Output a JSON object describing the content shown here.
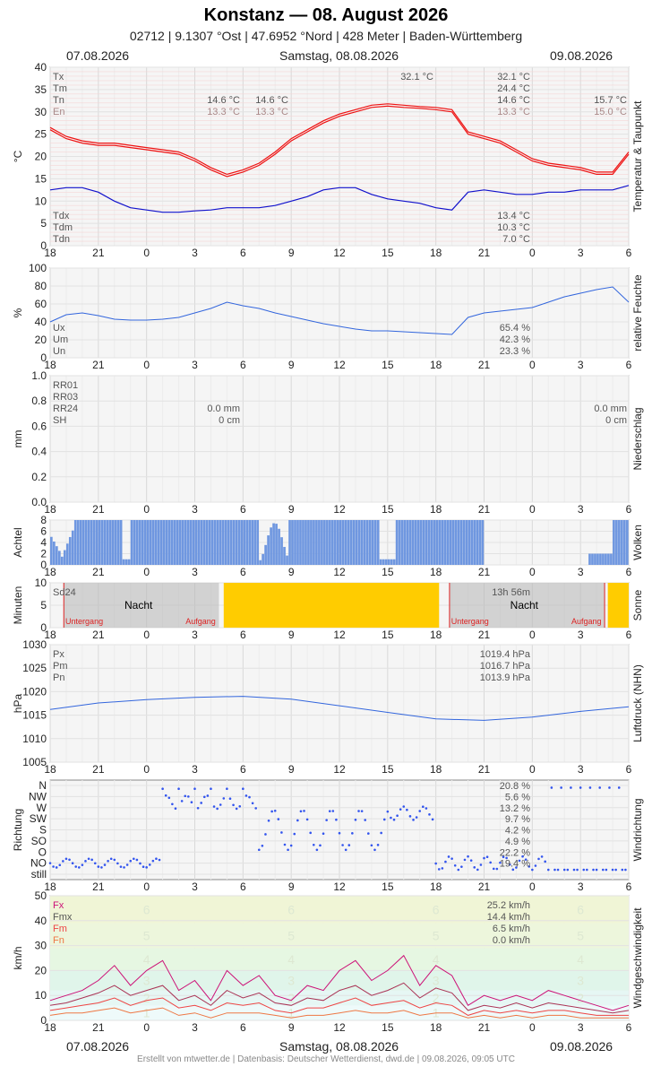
{
  "header": {
    "title": "Konstanz  —  08. August 2026",
    "subtitle": "02712  |  9.1307 °Ost  |  47.6952 °Nord  |  428 Meter  |  Baden-Württemberg",
    "date_left": "07.08.2026",
    "date_center": "Samstag, 08.08.2026",
    "date_right": "09.08.2026"
  },
  "footer": "Erstellt von mtwetter.de | Datenbasis: Deutscher Wetterdienst, dwd.de | 09.08.2026, 09:05 UTC",
  "x_ticks": [
    "18",
    "21",
    "0",
    "3",
    "6",
    "9",
    "12",
    "15",
    "18",
    "21",
    "0",
    "3",
    "6"
  ],
  "colors": {
    "temp": "#ee1111",
    "dew": "#1111cc",
    "humidity": "#3366dd",
    "cloud": "#6f97e0",
    "sun": "#ffcc00",
    "night": "#bbbbbb",
    "pressure": "#3366dd",
    "wind_dir": "#3355ee",
    "fx": "#cc1177",
    "fmx": "#aa3355",
    "fm": "#ee4444",
    "fn": "#ee7744"
  },
  "chart_data": [
    {
      "type": "line",
      "ylabel": "°C",
      "side_label": "Temperatur & Taupunkt",
      "ylim": [
        0,
        40
      ],
      "yticks": [
        "0",
        "5",
        "10",
        "15",
        "20",
        "25",
        "30",
        "35",
        "40"
      ],
      "legend": [
        "Tx",
        "Tm",
        "Tn",
        "En"
      ],
      "legend_bottom": [
        "Tdx",
        "Tdm",
        "Tdn"
      ],
      "annot_day1": {
        "tn": "14.6 °C",
        "en": "13.3 °C"
      },
      "annot_day1b": {
        "tn": "14.6 °C",
        "en": "13.3 °C"
      },
      "annot_peak": "32.1 °C",
      "annot_day2": {
        "tx": "32.1 °C",
        "tm": "24.4 °C",
        "tn": "14.6 °C",
        "en": "13.3 °C"
      },
      "annot_day3": {
        "tn": "15.7 °C",
        "en": "15.0 °C"
      },
      "annot_dew": {
        "tdx": "13.4 °C",
        "tdm": "10.3 °C",
        "tdn": "7.0 °C"
      },
      "x": [
        0,
        1,
        2,
        3,
        4,
        5,
        6,
        7,
        8,
        9,
        10,
        11,
        12,
        13,
        14,
        15,
        16,
        17,
        18,
        19,
        20,
        21,
        22,
        23,
        24,
        25,
        26,
        27,
        28,
        29,
        30,
        31,
        32,
        33,
        34,
        35,
        36
      ],
      "series": [
        {
          "name": "Tx",
          "values": [
            26.5,
            24.5,
            23.5,
            23.0,
            23.0,
            22.5,
            22.0,
            21.5,
            21.0,
            19.5,
            17.5,
            16.0,
            17.0,
            18.5,
            21.0,
            24.0,
            26.0,
            28.0,
            29.5,
            30.5,
            31.5,
            31.8,
            31.5,
            31.2,
            31.0,
            30.5,
            25.5,
            24.5,
            23.5,
            21.5,
            19.5,
            18.5,
            18.0,
            17.5,
            16.5,
            16.5,
            21.0
          ]
        },
        {
          "name": "Tm",
          "values": [
            26.0,
            24.0,
            23.0,
            22.5,
            22.5,
            22.0,
            21.5,
            21.0,
            20.5,
            19.0,
            17.0,
            15.5,
            16.5,
            18.0,
            20.5,
            23.5,
            25.5,
            27.5,
            29.0,
            30.0,
            31.0,
            31.3,
            31.0,
            30.8,
            30.5,
            30.0,
            25.0,
            24.0,
            23.0,
            21.0,
            19.0,
            18.0,
            17.5,
            17.0,
            16.0,
            16.0,
            20.5
          ]
        },
        {
          "name": "Dew",
          "values": [
            12.5,
            13.0,
            13.0,
            12.0,
            10.0,
            8.5,
            8.0,
            7.5,
            7.5,
            7.8,
            8.0,
            8.5,
            8.5,
            8.5,
            9.0,
            10.0,
            11.0,
            12.5,
            13.0,
            13.0,
            11.5,
            10.5,
            10.0,
            9.5,
            8.5,
            8.0,
            12.0,
            12.5,
            12.0,
            11.5,
            11.5,
            12.0,
            12.0,
            12.5,
            12.5,
            12.5,
            13.5
          ]
        }
      ]
    },
    {
      "type": "line",
      "ylabel": "%",
      "side_label": "relative Feuchte",
      "ylim": [
        0,
        100
      ],
      "yticks": [
        "0",
        "20",
        "40",
        "60",
        "80",
        "100"
      ],
      "legend": [
        "Ux",
        "Um",
        "Un"
      ],
      "annot": {
        "ux": "65.4 %",
        "um": "42.3 %",
        "un": "23.3 %"
      },
      "x": [
        0,
        1,
        2,
        3,
        4,
        5,
        6,
        7,
        8,
        9,
        10,
        11,
        12,
        13,
        14,
        15,
        16,
        17,
        18,
        19,
        20,
        21,
        22,
        23,
        24,
        25,
        26,
        27,
        28,
        29,
        30,
        31,
        32,
        33,
        34,
        35,
        36
      ],
      "series": [
        {
          "name": "rF",
          "values": [
            40,
            48,
            50,
            47,
            43,
            42,
            42,
            43,
            45,
            50,
            55,
            62,
            58,
            55,
            50,
            46,
            42,
            38,
            35,
            32,
            30,
            30,
            29,
            28,
            27,
            26,
            45,
            50,
            52,
            54,
            56,
            62,
            68,
            72,
            76,
            79,
            62
          ]
        }
      ]
    },
    {
      "type": "bar",
      "ylabel": "mm",
      "side_label": "Niederschlag",
      "ylim": [
        0,
        1.0
      ],
      "yticks": [
        "0.0",
        "0.2",
        "0.4",
        "0.6",
        "0.8",
        "1.0"
      ],
      "legend": [
        "RR01",
        "RR03",
        "RR24",
        "SH"
      ],
      "annot_day1": {
        "rr24": "0.0 mm",
        "sh": "0 cm"
      },
      "annot_day2": {
        "rr24": "0.0 mm",
        "sh": "0 cm"
      },
      "values": []
    },
    {
      "type": "bar",
      "ylabel": "Achtel",
      "side_label": "Wolken",
      "ylim": [
        0,
        8
      ],
      "yticks": [
        "0",
        "2",
        "4",
        "6",
        "8"
      ]
    },
    {
      "type": "bar",
      "ylabel": "Minuten",
      "side_label": "Sonne",
      "ylim": [
        0,
        10
      ],
      "yticks": [
        "0",
        "5",
        "10"
      ],
      "legend": [
        "Sd24"
      ],
      "sd24_value": "13h 56m",
      "night_label": "Nacht",
      "untergang": "Untergang",
      "aufgang": "Aufgang"
    },
    {
      "type": "line",
      "ylabel": "hPa",
      "side_label": "Luftdruck (NHN)",
      "ylim": [
        1005,
        1030
      ],
      "yticks": [
        "1005",
        "1010",
        "1015",
        "1020",
        "1025",
        "1030"
      ],
      "legend": [
        "Px",
        "Pm",
        "Pn"
      ],
      "annot": {
        "px": "1019.4 hPa",
        "pm": "1016.7 hPa",
        "pn": "1013.9 hPa"
      },
      "x": [
        0,
        3,
        6,
        9,
        12,
        15,
        18,
        21,
        24,
        27,
        30,
        33,
        36
      ],
      "series": [
        {
          "name": "P",
          "values": [
            1016.2,
            1017.6,
            1018.3,
            1018.8,
            1019.0,
            1018.4,
            1017.0,
            1015.6,
            1014.2,
            1013.9,
            1014.6,
            1015.8,
            1016.8
          ]
        }
      ]
    },
    {
      "type": "scatter",
      "ylabel": "Richtung",
      "side_label": "Windrichtung",
      "categories": [
        "N",
        "NW",
        "W",
        "SW",
        "S",
        "SO",
        "O",
        "NO",
        "still"
      ],
      "pct": [
        "20.8 %",
        "5.6 %",
        "13.2 %",
        "9.7 %",
        "4.2 %",
        "4.9 %",
        "22.2 %",
        "19.4 %"
      ]
    },
    {
      "type": "line",
      "ylabel": "km/h",
      "side_label": "Windgeschwindigkeit",
      "ylim": [
        0,
        50
      ],
      "yticks": [
        "0",
        "10",
        "20",
        "30",
        "40",
        "50"
      ],
      "legend": [
        "Fx",
        "Fmx",
        "Fm",
        "Fn"
      ],
      "annot": {
        "fx": "25.2 km/h",
        "fmx": "14.4 km/h",
        "fm": "6.5 km/h",
        "fn": "0.0 km/h"
      },
      "beaufort": [
        "1",
        "2",
        "3",
        "4",
        "5",
        "6"
      ],
      "x": [
        0,
        1,
        2,
        3,
        4,
        5,
        6,
        7,
        8,
        9,
        10,
        11,
        12,
        13,
        14,
        15,
        16,
        17,
        18,
        19,
        20,
        21,
        22,
        23,
        24,
        25,
        26,
        27,
        28,
        29,
        30,
        31,
        32,
        33,
        34,
        35,
        36
      ],
      "series": [
        {
          "name": "Fx",
          "values": [
            8,
            10,
            12,
            16,
            22,
            14,
            20,
            24,
            12,
            16,
            8,
            20,
            14,
            18,
            10,
            8,
            14,
            12,
            20,
            24,
            16,
            20,
            26,
            14,
            22,
            18,
            6,
            10,
            8,
            10,
            8,
            12,
            10,
            8,
            6,
            4,
            6
          ]
        },
        {
          "name": "Fmx",
          "values": [
            6,
            7,
            9,
            11,
            14,
            10,
            12,
            14,
            8,
            10,
            6,
            12,
            9,
            11,
            7,
            6,
            9,
            8,
            12,
            14,
            10,
            12,
            15,
            9,
            13,
            11,
            4,
            6,
            5,
            7,
            5,
            7,
            6,
            5,
            4,
            3,
            4
          ]
        },
        {
          "name": "Fm",
          "values": [
            4,
            5,
            6,
            7,
            9,
            6,
            8,
            9,
            5,
            6,
            4,
            7,
            6,
            7,
            4,
            3,
            5,
            5,
            7,
            9,
            6,
            7,
            8,
            5,
            7,
            6,
            2,
            4,
            3,
            4,
            3,
            4,
            4,
            3,
            2,
            2,
            2
          ]
        },
        {
          "name": "Fn",
          "values": [
            2,
            3,
            3,
            4,
            5,
            3,
            4,
            5,
            2,
            3,
            1,
            3,
            3,
            3,
            2,
            1,
            2,
            2,
            3,
            4,
            3,
            3,
            4,
            2,
            3,
            3,
            1,
            2,
            1,
            2,
            1,
            2,
            2,
            1,
            1,
            1,
            1
          ]
        }
      ]
    }
  ]
}
